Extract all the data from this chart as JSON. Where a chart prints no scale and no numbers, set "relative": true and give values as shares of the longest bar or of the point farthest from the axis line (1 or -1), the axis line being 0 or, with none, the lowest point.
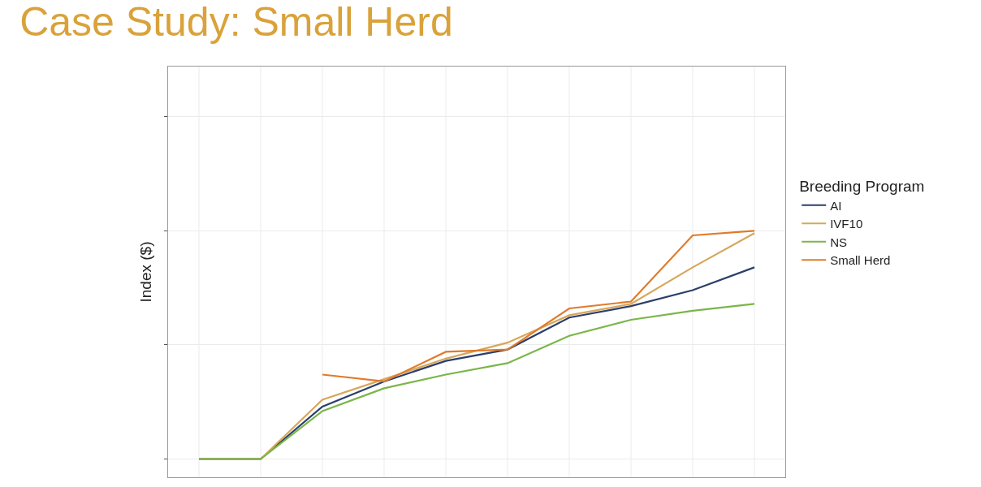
{
  "chart_data": {
    "type": "line",
    "title": "Case Study: Small Herd",
    "ylabel": "Index ($)",
    "legend_title": "Breeding Program",
    "relative": true,
    "grid": true,
    "legend": "right",
    "marker": "none",
    "line_style": "solid",
    "categories": [
      null,
      null,
      null,
      null,
      null,
      null,
      null,
      null,
      null,
      null
    ],
    "series": [
      {
        "name": "AI",
        "color": "#2b3f6b",
        "values": [
          0,
          0,
          0.23,
          0.34,
          0.43,
          0.48,
          0.62,
          0.67,
          0.74,
          0.84
        ]
      },
      {
        "name": "IVF10",
        "color": "#d7a75a",
        "values": [
          0,
          0,
          0.26,
          0.35,
          0.44,
          0.51,
          0.63,
          0.68,
          0.84,
          0.99
        ]
      },
      {
        "name": "NS",
        "color": "#7ab648",
        "values": [
          0,
          0,
          0.21,
          0.31,
          0.37,
          0.42,
          0.54,
          0.61,
          0.65,
          0.68
        ]
      },
      {
        "name": "Small Herd",
        "color": "#e07b2a",
        "values": [
          null,
          null,
          0.37,
          0.34,
          0.47,
          0.48,
          0.66,
          0.69,
          0.98,
          1
        ]
      }
    ]
  }
}
